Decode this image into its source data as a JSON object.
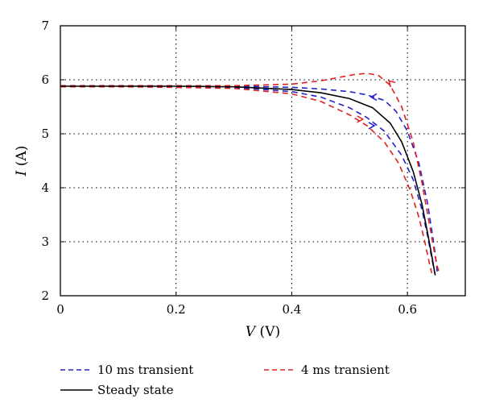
{
  "chart_data": {
    "type": "line",
    "xlabel": {
      "var": "V",
      "unit": " (V)"
    },
    "ylabel": {
      "var": "I",
      "unit": " (A)"
    },
    "xlim": [
      0,
      0.7
    ],
    "ylim": [
      2,
      7
    ],
    "xticks": [
      "0",
      "0.2",
      "0.4",
      "0.6"
    ],
    "xtick_values": [
      0,
      0.2,
      0.4,
      0.6
    ],
    "yticks": [
      "2",
      "3",
      "4",
      "5",
      "6",
      "7"
    ],
    "ytick_values": [
      2,
      3,
      4,
      5,
      6,
      7
    ],
    "grid": true,
    "series": [
      {
        "name": "10 ms transient",
        "color": "#2222cc",
        "dash": "dashed",
        "curves": [
          [
            [
              0,
              5.89
            ],
            [
              0.1,
              5.89
            ],
            [
              0.2,
              5.89
            ],
            [
              0.3,
              5.885
            ],
            [
              0.4,
              5.86
            ],
            [
              0.45,
              5.83
            ],
            [
              0.5,
              5.78
            ],
            [
              0.53,
              5.72
            ],
            [
              0.56,
              5.62
            ],
            [
              0.58,
              5.42
            ],
            [
              0.6,
              5.05
            ],
            [
              0.62,
              4.45
            ],
            [
              0.635,
              3.7
            ],
            [
              0.645,
              3.0
            ],
            [
              0.65,
              2.6
            ],
            [
              0.652,
              2.38
            ]
          ],
          [
            [
              0,
              5.87
            ],
            [
              0.1,
              5.87
            ],
            [
              0.2,
              5.87
            ],
            [
              0.3,
              5.86
            ],
            [
              0.4,
              5.78
            ],
            [
              0.45,
              5.68
            ],
            [
              0.5,
              5.48
            ],
            [
              0.53,
              5.3
            ],
            [
              0.56,
              5.05
            ],
            [
              0.59,
              4.6
            ],
            [
              0.61,
              4.15
            ],
            [
              0.625,
              3.6
            ],
            [
              0.635,
              3.1
            ],
            [
              0.642,
              2.7
            ],
            [
              0.648,
              2.38
            ]
          ]
        ]
      },
      {
        "name": "4 ms transient",
        "color": "#e02020",
        "dash": "dashed",
        "curves": [
          [
            [
              0,
              5.89
            ],
            [
              0.1,
              5.89
            ],
            [
              0.2,
              5.89
            ],
            [
              0.3,
              5.89
            ],
            [
              0.4,
              5.92
            ],
            [
              0.45,
              5.98
            ],
            [
              0.48,
              6.04
            ],
            [
              0.51,
              6.1
            ],
            [
              0.53,
              6.12
            ],
            [
              0.55,
              6.08
            ],
            [
              0.57,
              5.9
            ],
            [
              0.59,
              5.5
            ],
            [
              0.61,
              4.85
            ],
            [
              0.625,
              4.1
            ],
            [
              0.64,
              3.2
            ],
            [
              0.65,
              2.6
            ],
            [
              0.655,
              2.42
            ]
          ],
          [
            [
              0,
              5.87
            ],
            [
              0.1,
              5.87
            ],
            [
              0.2,
              5.86
            ],
            [
              0.3,
              5.84
            ],
            [
              0.4,
              5.74
            ],
            [
              0.45,
              5.6
            ],
            [
              0.5,
              5.35
            ],
            [
              0.53,
              5.15
            ],
            [
              0.56,
              4.85
            ],
            [
              0.585,
              4.45
            ],
            [
              0.605,
              3.95
            ],
            [
              0.62,
              3.45
            ],
            [
              0.63,
              3.0
            ],
            [
              0.638,
              2.6
            ],
            [
              0.642,
              2.42
            ]
          ]
        ]
      },
      {
        "name": "Steady state",
        "color": "#000000",
        "dash": "solid",
        "curves": [
          [
            [
              0,
              5.88
            ],
            [
              0.1,
              5.88
            ],
            [
              0.2,
              5.88
            ],
            [
              0.3,
              5.87
            ],
            [
              0.4,
              5.82
            ],
            [
              0.45,
              5.76
            ],
            [
              0.5,
              5.65
            ],
            [
              0.54,
              5.48
            ],
            [
              0.57,
              5.2
            ],
            [
              0.59,
              4.85
            ],
            [
              0.61,
              4.3
            ],
            [
              0.625,
              3.7
            ],
            [
              0.635,
              3.15
            ],
            [
              0.642,
              2.75
            ],
            [
              0.648,
              2.38
            ]
          ]
        ]
      }
    ],
    "arrows": [
      {
        "series": "10 ms transient",
        "at": [
          0.54,
          5.68
        ],
        "dir": "left"
      },
      {
        "series": "10 ms transient",
        "at": [
          0.54,
          5.15
        ],
        "dir": "right"
      },
      {
        "series": "4 ms transient",
        "at": [
          0.57,
          5.96
        ],
        "dir": "up-left"
      },
      {
        "series": "4 ms transient",
        "at": [
          0.52,
          5.27
        ],
        "dir": "right"
      }
    ]
  }
}
